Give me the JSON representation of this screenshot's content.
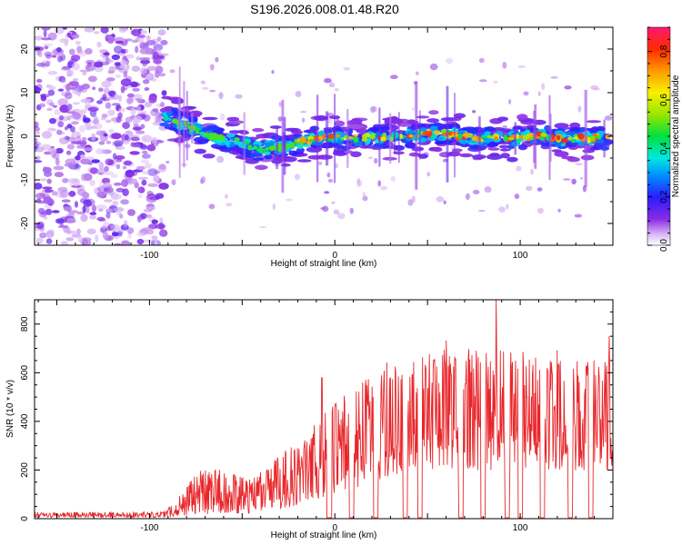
{
  "title": "S196.2026.008.01.48.R20",
  "colors": {
    "snr_line": "#e8262a",
    "axis": "#000000",
    "background": "#ffffff"
  },
  "chart_data": [
    {
      "type": "heatmap",
      "xlabel": "Height of straight line (km)",
      "ylabel": "Frequency (Hz)",
      "xlim": [
        -162,
        150
      ],
      "ylim": [
        -25,
        25
      ],
      "x_major_ticks": [
        -100,
        0,
        100
      ],
      "x_tick_labels": [
        "-100",
        "0",
        "100"
      ],
      "y_major_ticks": [
        -20,
        -10,
        0,
        10,
        20
      ],
      "y_tick_labels": [
        "-20",
        "-10",
        "0",
        "10",
        "20"
      ],
      "noise_region_x": [
        -162,
        -92
      ],
      "ridge_start_x": -92,
      "ridge_frequency_hz": [
        {
          "x": -90,
          "f": 4.5
        },
        {
          "x": -80,
          "f": 2.5
        },
        {
          "x": -70,
          "f": 0.5
        },
        {
          "x": -60,
          "f": -0.5
        },
        {
          "x": -50,
          "f": -1.5
        },
        {
          "x": -40,
          "f": -3
        },
        {
          "x": -30,
          "f": -2.5
        },
        {
          "x": -20,
          "f": -1.5
        },
        {
          "x": -10,
          "f": -0.5
        },
        {
          "x": 0,
          "f": -0.5
        },
        {
          "x": 10,
          "f": -0.5
        },
        {
          "x": 20,
          "f": 0
        },
        {
          "x": 30,
          "f": -0.5
        },
        {
          "x": 40,
          "f": 0
        },
        {
          "x": 50,
          "f": 0.5
        },
        {
          "x": 60,
          "f": 0.5
        },
        {
          "x": 70,
          "f": 0
        },
        {
          "x": 80,
          "f": -0.5
        },
        {
          "x": 90,
          "f": -0.5
        },
        {
          "x": 100,
          "f": -0.5
        },
        {
          "x": 110,
          "f": 0
        },
        {
          "x": 120,
          "f": -0.5
        },
        {
          "x": 130,
          "f": -0.5
        },
        {
          "x": 145,
          "f": -0.5
        }
      ],
      "colorbar": {
        "label": "Normalized spectral amplitude",
        "range": [
          0,
          0.9
        ],
        "ticks": [
          0.0,
          0.2,
          0.4,
          0.6,
          0.8
        ],
        "tick_labels": [
          "0.0",
          "0.2",
          "0.4",
          "0.6",
          "0.8"
        ]
      }
    },
    {
      "type": "line",
      "xlabel": "Height of straight line (km)",
      "ylabel": "SNR (10 * v/v)",
      "xlim": [
        -162,
        150
      ],
      "ylim": [
        0,
        900
      ],
      "x_major_ticks": [
        -100,
        0,
        100
      ],
      "x_tick_labels": [
        "-100",
        "0",
        "100"
      ],
      "y_major_ticks": [
        0,
        200,
        400,
        600,
        800
      ],
      "y_tick_labels": [
        "0",
        "200",
        "400",
        "600",
        "800"
      ],
      "series": [
        {
          "name": "SNR",
          "envelope": [
            {
              "x": -162,
              "low": 5,
              "high": 25
            },
            {
              "x": -92,
              "low": 5,
              "high": 30
            },
            {
              "x": -85,
              "low": 10,
              "high": 80
            },
            {
              "x": -75,
              "low": 20,
              "high": 200
            },
            {
              "x": -60,
              "low": 20,
              "high": 200
            },
            {
              "x": -45,
              "low": 20,
              "high": 160
            },
            {
              "x": -30,
              "low": 40,
              "high": 260
            },
            {
              "x": -15,
              "low": 60,
              "high": 350
            },
            {
              "x": 0,
              "low": 100,
              "high": 480
            },
            {
              "x": 20,
              "low": 150,
              "high": 600
            },
            {
              "x": 40,
              "low": 200,
              "high": 650
            },
            {
              "x": 60,
              "low": 200,
              "high": 700
            },
            {
              "x": 80,
              "low": 200,
              "high": 700
            },
            {
              "x": 100,
              "low": 200,
              "high": 700
            },
            {
              "x": 120,
              "low": 200,
              "high": 650
            },
            {
              "x": 140,
              "low": 200,
              "high": 650
            },
            {
              "x": 150,
              "low": 200,
              "high": 650
            }
          ],
          "peaks": [
            {
              "x": -7,
              "y": 580
            },
            {
              "x": 28,
              "y": 640
            },
            {
              "x": 60,
              "y": 730
            },
            {
              "x": 87,
              "y": 900
            },
            {
              "x": 120,
              "y": 690
            },
            {
              "x": 148,
              "y": 750
            }
          ],
          "dropouts_x": [
            -3,
            9,
            22,
            38,
            46,
            68,
            80,
            93,
            100,
            112,
            127,
            138
          ]
        }
      ]
    }
  ]
}
